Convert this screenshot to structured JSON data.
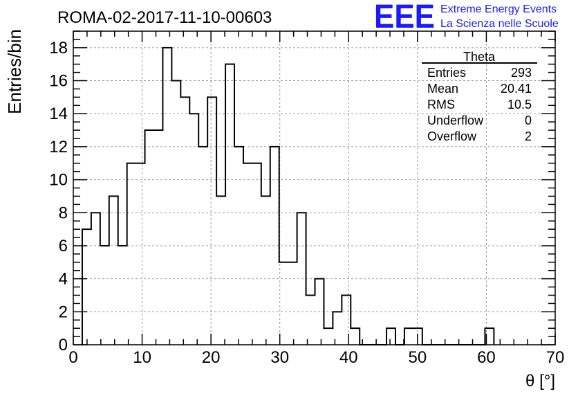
{
  "title": "ROMA-02-2017-11-10-00603",
  "logo": {
    "mark": "EEE",
    "line1": "Extreme Energy Events",
    "line2": "La Scienza nelle Scuole",
    "color": "#1a1aff"
  },
  "stats": {
    "name": "Theta",
    "rows": [
      {
        "label": "Entries",
        "value": "293"
      },
      {
        "label": "Mean",
        "value": "20.41"
      },
      {
        "label": "RMS",
        "value": "10.5"
      },
      {
        "label": "Underflow",
        "value": "0"
      },
      {
        "label": "Overflow",
        "value": "2"
      }
    ]
  },
  "chart_data": {
    "type": "histogram",
    "title": "ROMA-02-2017-11-10-00603",
    "xlabel": "θ [°]",
    "ylabel": "Entries/bin",
    "xlim": [
      0,
      70
    ],
    "ylim": [
      0,
      19
    ],
    "grid": true,
    "bin_width": 1.3,
    "bin_start": 1.3,
    "values": [
      7,
      8,
      6,
      9,
      6,
      11,
      11,
      13,
      13,
      18,
      16,
      15,
      14,
      12,
      15,
      9,
      17,
      12,
      11,
      11,
      9,
      12,
      5,
      5,
      8,
      3,
      4,
      1,
      2,
      3,
      1,
      0,
      0,
      0,
      1,
      0,
      1,
      1,
      0,
      0,
      0,
      0,
      0,
      0,
      0,
      1
    ],
    "x_ticks": [
      0,
      10,
      20,
      30,
      40,
      50,
      60,
      70
    ],
    "y_ticks": [
      0,
      2,
      4,
      6,
      8,
      10,
      12,
      14,
      16,
      18
    ]
  }
}
